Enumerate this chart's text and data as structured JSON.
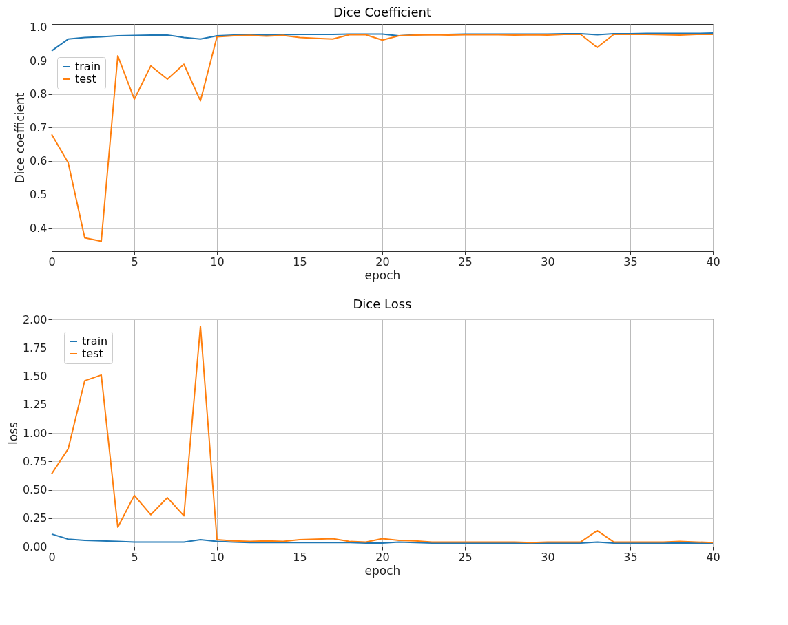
{
  "chart_data": [
    {
      "type": "line",
      "title": "Dice Coefficient",
      "xlabel": "epoch",
      "ylabel": "Dice coefficient",
      "x": [
        0,
        1,
        2,
        3,
        4,
        5,
        6,
        7,
        8,
        9,
        10,
        11,
        12,
        13,
        14,
        15,
        16,
        17,
        18,
        19,
        20,
        21,
        22,
        23,
        24,
        25,
        26,
        27,
        28,
        29,
        30,
        31,
        32,
        33,
        34,
        35,
        36,
        37,
        38,
        39,
        40
      ],
      "series": [
        {
          "name": "train",
          "color": "#1f77b4",
          "values": [
            0.93,
            0.965,
            0.97,
            0.972,
            0.975,
            0.976,
            0.977,
            0.977,
            0.97,
            0.965,
            0.975,
            0.977,
            0.978,
            0.977,
            0.978,
            0.979,
            0.979,
            0.979,
            0.98,
            0.98,
            0.98,
            0.975,
            0.978,
            0.979,
            0.979,
            0.98,
            0.98,
            0.98,
            0.98,
            0.98,
            0.98,
            0.981,
            0.981,
            0.978,
            0.981,
            0.981,
            0.982,
            0.982,
            0.982,
            0.982,
            0.983
          ]
        },
        {
          "name": "test",
          "color": "#ff7f0e",
          "values": [
            0.68,
            0.595,
            0.37,
            0.36,
            0.915,
            0.785,
            0.885,
            0.845,
            0.89,
            0.78,
            0.972,
            0.975,
            0.976,
            0.974,
            0.976,
            0.97,
            0.967,
            0.965,
            0.978,
            0.978,
            0.962,
            0.975,
            0.977,
            0.978,
            0.977,
            0.978,
            0.978,
            0.978,
            0.977,
            0.978,
            0.977,
            0.979,
            0.979,
            0.94,
            0.979,
            0.979,
            0.979,
            0.978,
            0.977,
            0.979,
            0.979
          ]
        }
      ],
      "xlim": [
        0,
        40
      ],
      "xticks": [
        0,
        5,
        10,
        15,
        20,
        25,
        30,
        35,
        40
      ],
      "ylim": [
        0.33,
        1.01
      ],
      "yticks": [
        {
          "value": 0.4,
          "label": "0.4"
        },
        {
          "value": 0.5,
          "label": "0.5"
        },
        {
          "value": 0.6,
          "label": "0.6"
        },
        {
          "value": 0.7,
          "label": "0.7"
        },
        {
          "value": 0.8,
          "label": "0.8"
        },
        {
          "value": 0.9,
          "label": "0.9"
        },
        {
          "value": 1.0,
          "label": "1.0"
        }
      ],
      "grid": true,
      "legend": "top left"
    },
    {
      "type": "line",
      "title": "Dice Loss",
      "xlabel": "epoch",
      "ylabel": "loss",
      "x": [
        0,
        1,
        2,
        3,
        4,
        5,
        6,
        7,
        8,
        9,
        10,
        11,
        12,
        13,
        14,
        15,
        16,
        17,
        18,
        19,
        20,
        21,
        22,
        23,
        24,
        25,
        26,
        27,
        28,
        29,
        30,
        31,
        32,
        33,
        34,
        35,
        36,
        37,
        38,
        39,
        40
      ],
      "series": [
        {
          "name": "train",
          "color": "#1f77b4",
          "values": [
            0.11,
            0.065,
            0.055,
            0.05,
            0.045,
            0.04,
            0.04,
            0.04,
            0.04,
            0.06,
            0.045,
            0.04,
            0.035,
            0.035,
            0.035,
            0.035,
            0.035,
            0.035,
            0.035,
            0.03,
            0.03,
            0.04,
            0.035,
            0.03,
            0.03,
            0.03,
            0.03,
            0.03,
            0.03,
            0.03,
            0.03,
            0.03,
            0.03,
            0.04,
            0.03,
            0.03,
            0.03,
            0.03,
            0.03,
            0.03,
            0.03
          ]
        },
        {
          "name": "test",
          "color": "#ff7f0e",
          "values": [
            0.64,
            0.86,
            1.46,
            1.51,
            0.17,
            0.45,
            0.28,
            0.43,
            0.27,
            1.94,
            0.06,
            0.05,
            0.045,
            0.05,
            0.045,
            0.06,
            0.065,
            0.07,
            0.045,
            0.04,
            0.07,
            0.055,
            0.05,
            0.04,
            0.04,
            0.04,
            0.04,
            0.04,
            0.04,
            0.035,
            0.04,
            0.04,
            0.04,
            0.14,
            0.04,
            0.04,
            0.04,
            0.04,
            0.045,
            0.04,
            0.035
          ]
        }
      ],
      "xlim": [
        0,
        40
      ],
      "xticks": [
        0,
        5,
        10,
        15,
        20,
        25,
        30,
        35,
        40
      ],
      "ylim": [
        0,
        2
      ],
      "yticks": [
        {
          "value": 0,
          "label": "0.00"
        },
        {
          "value": 0.25,
          "label": "0.25"
        },
        {
          "value": 0.5,
          "label": "0.50"
        },
        {
          "value": 0.75,
          "label": "0.75"
        },
        {
          "value": 1,
          "label": "1.00"
        },
        {
          "value": 1.25,
          "label": "1.25"
        },
        {
          "value": 1.5,
          "label": "1.50"
        },
        {
          "value": 1.75,
          "label": "1.75"
        },
        {
          "value": 2,
          "label": "2.00"
        }
      ],
      "grid": true,
      "legend": "top left"
    }
  ]
}
